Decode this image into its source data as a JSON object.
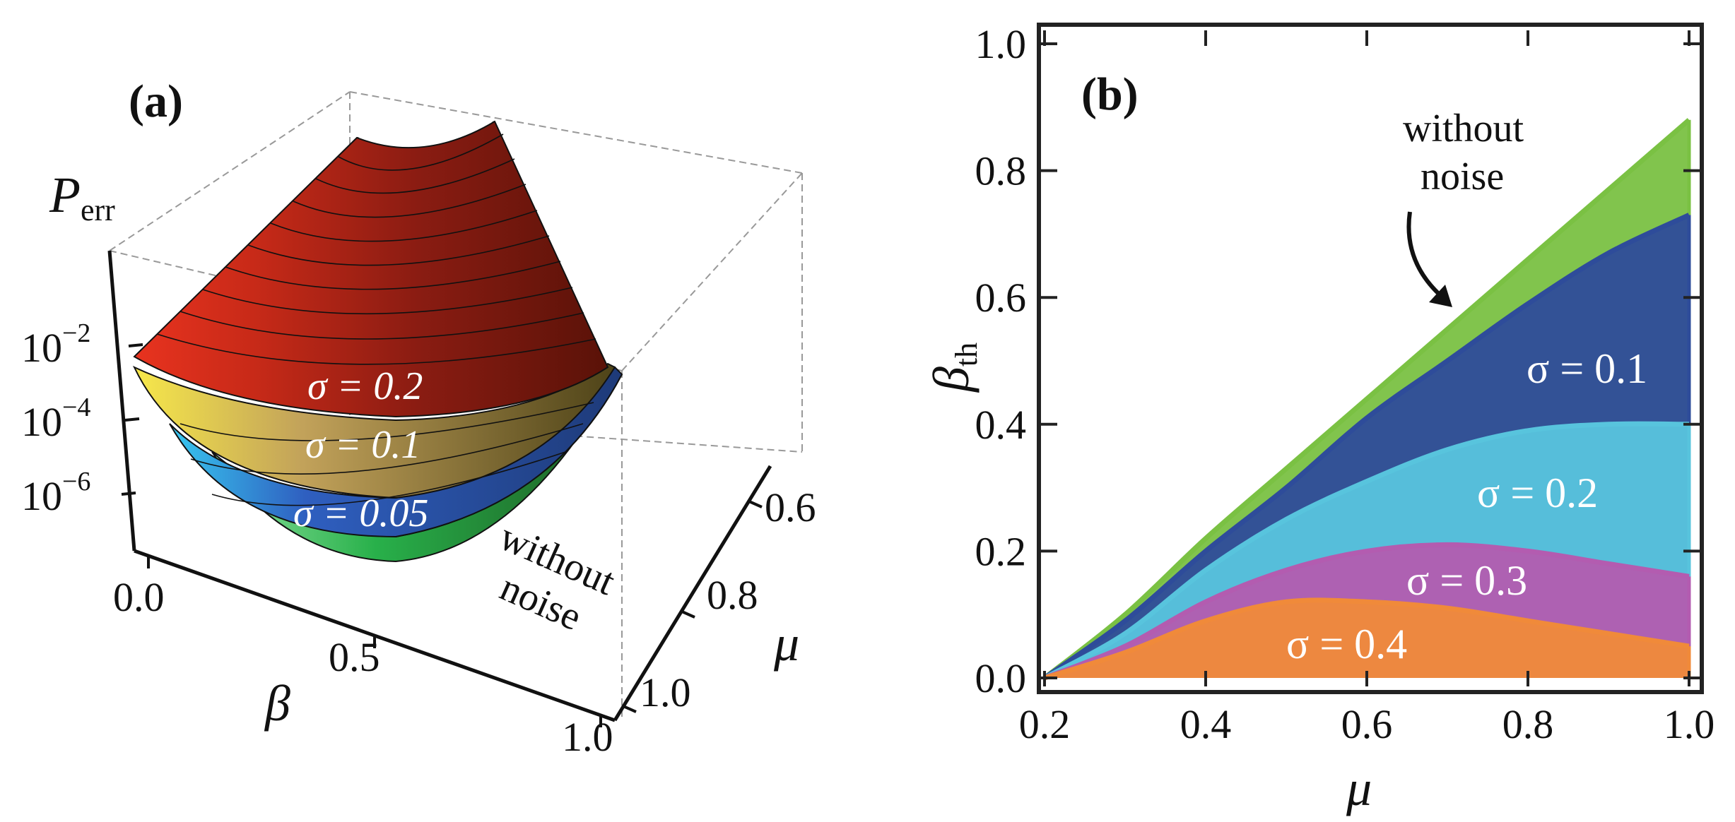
{
  "chart_data": [
    {
      "panel": "(a)",
      "type": "surface3d",
      "zlabel_main": "P",
      "zlabel_sub": "err",
      "xlabel": "β",
      "ylabel": "μ",
      "x_ticks": [
        "0.0",
        "0.5",
        "1.0"
      ],
      "y_ticks": [
        "0.6",
        "0.8",
        "1.0"
      ],
      "z_ticks": [
        {
          "base": "10",
          "exp": "−2"
        },
        {
          "base": "10",
          "exp": "−4"
        },
        {
          "base": "10",
          "exp": "−6"
        }
      ],
      "surface_labels": [
        "σ = 0.2",
        "σ = 0.1",
        "σ = 0.05"
      ],
      "annotation": [
        "without",
        "noise"
      ],
      "surface_colors": {
        "sigma_0_2": "#8b1a12",
        "sigma_0_1": "#6b5a1e",
        "sigma_0_05": "#2f4ea8",
        "no_noise": "#2f7d32"
      }
    },
    {
      "panel": "(b)",
      "type": "area",
      "xlabel": "μ",
      "ylabel_main": "β",
      "ylabel_sub": "th",
      "xlim": [
        0.2,
        1.0
      ],
      "ylim": [
        0.0,
        1.0
      ],
      "x_ticks": [
        "0.2",
        "0.4",
        "0.6",
        "0.8",
        "1.0"
      ],
      "y_ticks": [
        "0.0",
        "0.2",
        "0.4",
        "0.6",
        "0.8",
        "1.0"
      ],
      "x": [
        0.2,
        0.3,
        0.4,
        0.5,
        0.6,
        0.7,
        0.8,
        0.9,
        1.0
      ],
      "series": [
        {
          "name": "without noise",
          "color": "#7ac143",
          "values": [
            0.0,
            0.1,
            0.22,
            0.33,
            0.44,
            0.55,
            0.66,
            0.77,
            0.88
          ]
        },
        {
          "name": "σ = 0.1",
          "color": "#2e4c9a",
          "values": [
            0.0,
            0.09,
            0.2,
            0.3,
            0.41,
            0.5,
            0.59,
            0.67,
            0.73
          ]
        },
        {
          "name": "σ = 0.2",
          "color": "#58c4dd",
          "values": [
            0.0,
            0.07,
            0.17,
            0.25,
            0.31,
            0.36,
            0.39,
            0.4,
            0.4
          ]
        },
        {
          "name": "σ = 0.3",
          "color": "#b35cb0",
          "values": [
            0.0,
            0.05,
            0.12,
            0.17,
            0.2,
            0.21,
            0.2,
            0.18,
            0.16
          ]
        },
        {
          "name": "σ = 0.4",
          "color": "#f08a3a",
          "values": [
            0.0,
            0.04,
            0.09,
            0.12,
            0.12,
            0.11,
            0.09,
            0.07,
            0.05
          ]
        }
      ],
      "region_labels": [
        "σ = 0.1",
        "σ = 0.2",
        "σ = 0.3",
        "σ = 0.4"
      ],
      "annotation": [
        "without",
        "noise"
      ]
    }
  ]
}
